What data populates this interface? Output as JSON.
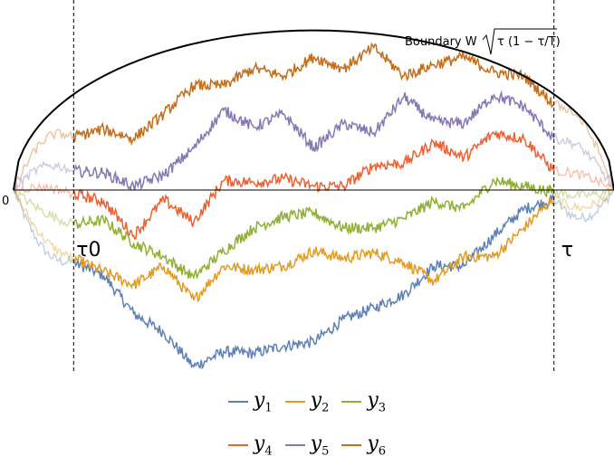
{
  "chart_data": {
    "type": "line",
    "title": "",
    "xlabel": "",
    "ylabel": "",
    "xlim": [
      0,
      1
    ],
    "ylim": [
      -1,
      1
    ],
    "grid": false,
    "legend_position": "bottom",
    "origin_label": "0",
    "vlines": [
      {
        "x": 0.1,
        "label": "τ0"
      },
      {
        "x": 0.9,
        "label": "τ"
      }
    ],
    "boundary": {
      "label": "Boundary W",
      "formula": "τ (1 − τ/T)",
      "radius": 0.84
    },
    "series": [
      {
        "name": "y1",
        "sub": "1",
        "color": "#5E81B5",
        "x": [
          0.1,
          0.15,
          0.2,
          0.25,
          0.3,
          0.35,
          0.4,
          0.45,
          0.5,
          0.55,
          0.6,
          0.65,
          0.7,
          0.75,
          0.8,
          0.85,
          0.9
        ],
        "values": [
          -0.38,
          -0.45,
          -0.65,
          -0.75,
          -0.93,
          -0.85,
          -0.86,
          -0.82,
          -0.8,
          -0.68,
          -0.62,
          -0.55,
          -0.4,
          -0.4,
          -0.24,
          -0.1,
          -0.05
        ]
      },
      {
        "name": "y2",
        "sub": "2",
        "color": "#E19C24",
        "x": [
          0.1,
          0.15,
          0.2,
          0.25,
          0.3,
          0.35,
          0.4,
          0.45,
          0.5,
          0.55,
          0.6,
          0.65,
          0.7,
          0.75,
          0.8,
          0.85,
          0.9
        ],
        "values": [
          -0.36,
          -0.43,
          -0.5,
          -0.4,
          -0.58,
          -0.4,
          -0.42,
          -0.4,
          -0.32,
          -0.36,
          -0.33,
          -0.38,
          -0.48,
          -0.35,
          -0.35,
          -0.2,
          -0.04
        ]
      },
      {
        "name": "y3",
        "sub": "3",
        "color": "#8FB032",
        "x": [
          0.1,
          0.15,
          0.2,
          0.25,
          0.3,
          0.35,
          0.4,
          0.45,
          0.5,
          0.55,
          0.6,
          0.65,
          0.7,
          0.75,
          0.8,
          0.85,
          0.9
        ],
        "values": [
          -0.18,
          -0.16,
          -0.28,
          -0.35,
          -0.46,
          -0.32,
          -0.2,
          -0.14,
          -0.12,
          -0.2,
          -0.2,
          -0.15,
          -0.06,
          -0.1,
          0.05,
          0.02,
          -0.01
        ]
      },
      {
        "name": "y4",
        "sub": "4",
        "color": "#EB6235",
        "x": [
          0.1,
          0.15,
          0.2,
          0.25,
          0.3,
          0.35,
          0.4,
          0.45,
          0.5,
          0.55,
          0.6,
          0.65,
          0.7,
          0.75,
          0.8,
          0.85,
          0.9
        ],
        "values": [
          -0.02,
          -0.06,
          -0.24,
          -0.05,
          -0.17,
          0.05,
          0.04,
          0.06,
          0.02,
          0.02,
          0.13,
          0.14,
          0.25,
          0.17,
          0.3,
          0.27,
          0.1
        ]
      },
      {
        "name": "y5",
        "sub": "5",
        "color": "#8778B3",
        "x": [
          0.1,
          0.15,
          0.2,
          0.25,
          0.3,
          0.35,
          0.4,
          0.45,
          0.5,
          0.55,
          0.6,
          0.65,
          0.7,
          0.75,
          0.8,
          0.85,
          0.9
        ],
        "values": [
          0.1,
          0.09,
          0.02,
          0.08,
          0.22,
          0.42,
          0.33,
          0.4,
          0.22,
          0.35,
          0.3,
          0.49,
          0.36,
          0.35,
          0.5,
          0.44,
          0.27
        ]
      },
      {
        "name": "y6",
        "sub": "6",
        "color": "#C56E1A",
        "x": [
          0.1,
          0.15,
          0.2,
          0.25,
          0.3,
          0.35,
          0.4,
          0.45,
          0.5,
          0.55,
          0.6,
          0.65,
          0.7,
          0.75,
          0.8,
          0.85,
          0.9
        ],
        "values": [
          0.28,
          0.32,
          0.27,
          0.4,
          0.55,
          0.55,
          0.64,
          0.6,
          0.7,
          0.64,
          0.75,
          0.6,
          0.66,
          0.7,
          0.62,
          0.6,
          0.45
        ]
      }
    ]
  }
}
